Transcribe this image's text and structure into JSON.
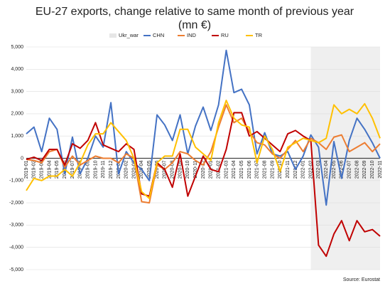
{
  "chart_data": {
    "type": "line",
    "title": [
      "EU-27 exports, change relative to same month of previous year",
      "(mn €)"
    ],
    "source": "Source: Eurostat",
    "categories": [
      "2019-01",
      "2019-02",
      "2019-03",
      "2019-04",
      "2019-05",
      "2019-06",
      "2019-07",
      "2019-08",
      "2019-09",
      "2019-10",
      "2019-11",
      "2019-12",
      "2020-01",
      "2020-02",
      "2020-03",
      "2020-04",
      "2020-05",
      "2020-06",
      "2020-07",
      "2020-08",
      "2020-09",
      "2020-10",
      "2020-11",
      "2020-12",
      "2021-01",
      "2021-02",
      "2021-03",
      "2021-04",
      "2021-05",
      "2021-06",
      "2021-07",
      "2021-08",
      "2021-09",
      "2021-10",
      "2021-11",
      "2021-12",
      "2022-01",
      "2022-02",
      "2022-03",
      "2022-04",
      "2022-05",
      "2022-06",
      "2022-07",
      "2022-08",
      "2022-09",
      "2022-10",
      "2022-11"
    ],
    "series": [
      {
        "name": "Ukr_war",
        "type": "area",
        "color": "#efefef",
        "values": [
          null,
          null,
          null,
          null,
          null,
          null,
          null,
          null,
          null,
          null,
          null,
          null,
          null,
          null,
          null,
          null,
          null,
          null,
          null,
          null,
          null,
          null,
          null,
          null,
          null,
          null,
          null,
          null,
          null,
          null,
          null,
          null,
          null,
          null,
          null,
          null,
          null,
          5000,
          5000,
          5000,
          5000,
          5000,
          5000,
          5000,
          5000,
          5000,
          5000
        ]
      },
      {
        "name": "CHN",
        "color": "#4472c4",
        "values": [
          1100,
          1400,
          300,
          1800,
          1300,
          -700,
          950,
          -700,
          0,
          1000,
          500,
          2500,
          -700,
          300,
          -200,
          -500,
          -1000,
          1950,
          1500,
          800,
          1950,
          200,
          1450,
          2300,
          1250,
          2400,
          4850,
          2950,
          3100,
          2400,
          200,
          1150,
          200,
          100,
          300,
          -500,
          100,
          1050,
          500,
          -2100,
          750,
          -900,
          800,
          1800,
          1300,
          700,
          0
        ]
      },
      {
        "name": "IND",
        "color": "#ed7d31",
        "values": [
          -50,
          -100,
          -200,
          300,
          400,
          -400,
          100,
          -300,
          -100,
          100,
          0,
          0,
          -200,
          200,
          0,
          -1950,
          -2000,
          -300,
          -500,
          -200,
          300,
          200,
          -100,
          -300,
          300,
          1400,
          2400,
          1600,
          1800,
          1200,
          700,
          600,
          200,
          0,
          400,
          800,
          300,
          900,
          700,
          400,
          950,
          1050,
          300,
          500,
          700,
          300,
          650
        ]
      },
      {
        "name": "RU",
        "color": "#c00000",
        "values": [
          -50,
          50,
          -100,
          400,
          400,
          -300,
          650,
          450,
          800,
          1600,
          600,
          450,
          300,
          650,
          400,
          -1600,
          -1700,
          -200,
          -500,
          -1300,
          200,
          -1700,
          -800,
          100,
          -500,
          -600,
          400,
          2050,
          2050,
          1000,
          1200,
          900,
          600,
          300,
          1100,
          1250,
          1000,
          800,
          -3900,
          -4400,
          -3400,
          -2800,
          -3700,
          -2800,
          -3300,
          -3200,
          -3500
        ]
      },
      {
        "name": "TR",
        "color": "#ffc000",
        "values": [
          -1450,
          -900,
          -1000,
          -800,
          -800,
          -500,
          -800,
          -200,
          600,
          1100,
          1100,
          1600,
          1200,
          800,
          0,
          -1500,
          -1800,
          -200,
          100,
          100,
          1300,
          1300,
          500,
          200,
          -100,
          1600,
          2600,
          1800,
          1500,
          1400,
          -200,
          1000,
          400,
          -600,
          500,
          700,
          900,
          800,
          700,
          900,
          2400,
          2000,
          2200,
          2000,
          2450,
          1800,
          900
        ]
      }
    ],
    "ylim": [
      -5000,
      5000
    ],
    "yticks": [
      {
        "value": -5000,
        "label": "-5,000"
      },
      {
        "value": -4000,
        "label": "-4,000"
      },
      {
        "value": -3000,
        "label": "-3,000"
      },
      {
        "value": -2000,
        "label": "-2,000"
      },
      {
        "value": -1000,
        "label": "-1,000"
      },
      0,
      {
        "value": 1000,
        "label": "1,000"
      },
      {
        "value": 2000,
        "label": "2,000"
      },
      {
        "value": 3000,
        "label": "3,000"
      },
      {
        "value": 4000,
        "label": "4,000"
      },
      {
        "value": 5000,
        "label": "5,000"
      }
    ],
    "grid": true
  }
}
